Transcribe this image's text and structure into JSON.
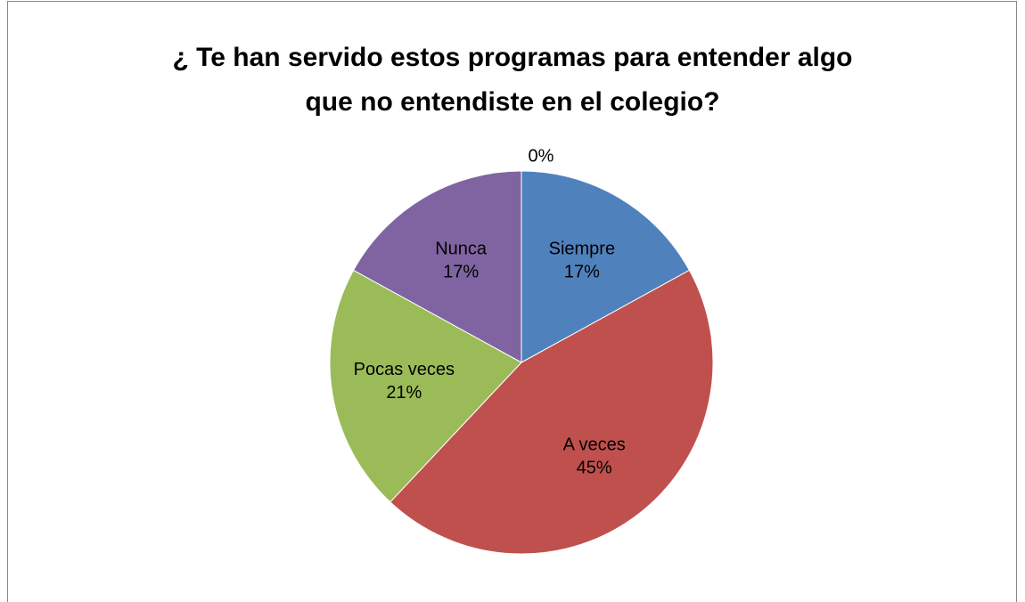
{
  "chart_data": {
    "type": "pie",
    "title": "¿ Te han servido estos programas para entender algo que no entendiste en el colegio?",
    "categories": [
      "Siempre",
      "A veces",
      "Pocas veces",
      "Nunca",
      null
    ],
    "values": [
      17,
      45,
      21,
      17,
      0
    ],
    "value_labels": [
      "17%",
      "45%",
      "21%",
      "17%",
      "0%"
    ],
    "colors": [
      "#4f81bd",
      "#c0504d",
      "#9bbb59",
      "#8064a2",
      "#4bacc6"
    ]
  }
}
